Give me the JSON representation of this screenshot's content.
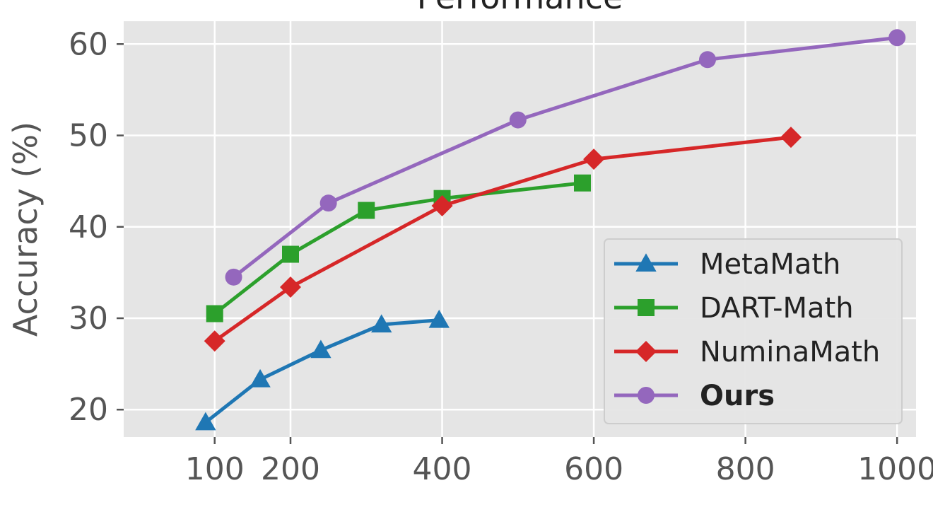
{
  "chart_data": {
    "type": "line",
    "title": "Performance",
    "xlabel": "",
    "ylabel": "Accuracy (%)",
    "xlim": [
      -20,
      1025
    ],
    "ylim": [
      17,
      62.5
    ],
    "xticks": [
      100,
      200,
      400,
      600,
      800,
      1000
    ],
    "yticks": [
      20,
      30,
      40,
      50,
      60
    ],
    "grid": true,
    "legend_position": "lower-right",
    "series": [
      {
        "name": "MetaMath",
        "color": "#1f77b4",
        "marker": "triangle",
        "bold": false,
        "x": [
          88,
          160,
          240,
          320,
          396
        ],
        "y": [
          18.6,
          23.3,
          26.5,
          29.3,
          29.8
        ]
      },
      {
        "name": "DART-Math",
        "color": "#2ca02c",
        "marker": "square",
        "bold": false,
        "x": [
          100,
          200,
          300,
          400,
          585
        ],
        "y": [
          30.5,
          37.0,
          41.8,
          43.1,
          44.8
        ]
      },
      {
        "name": "NuminaMath",
        "color": "#d62728",
        "marker": "diamond",
        "bold": false,
        "x": [
          100,
          200,
          400,
          600,
          860
        ],
        "y": [
          27.5,
          33.4,
          42.3,
          47.4,
          49.8
        ]
      },
      {
        "name": "Ours",
        "color": "#9467bd",
        "marker": "circle",
        "bold": true,
        "x": [
          125,
          250,
          500,
          750,
          1000
        ],
        "y": [
          34.5,
          42.6,
          51.7,
          58.3,
          60.7
        ]
      }
    ]
  }
}
